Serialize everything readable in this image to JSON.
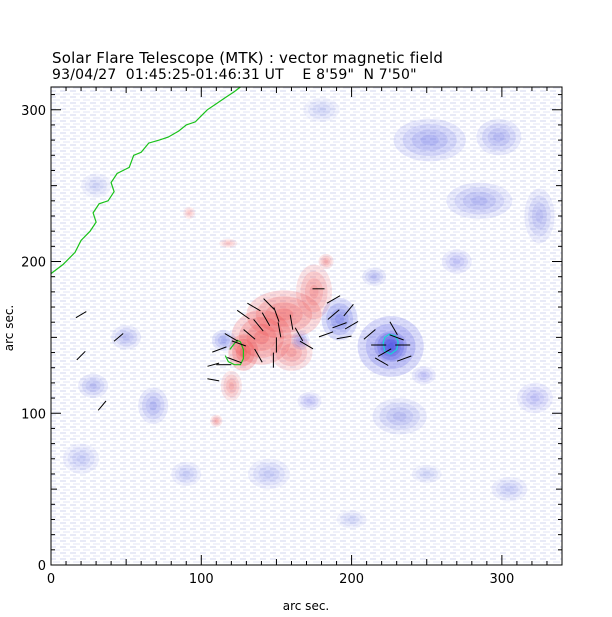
{
  "title": "Solar Flare Telescope (MTK) : vector magnetic field",
  "subtitle": "93/04/27  01:45:25-01:46:31 UT    E 8'59\"  N 7'50\"",
  "colors": {
    "background": "#ffffff",
    "noise": "#b8bde6",
    "positive_polarity": "#ee3b3b",
    "negative_polarity": "#3c46e0",
    "contour_green": "#19c219",
    "contour_cyan": "#19d6d6",
    "vectors": "#000000"
  },
  "chart_data": {
    "type": "magnetogram",
    "x_range": [
      0,
      340
    ],
    "y_range": [
      0,
      315
    ],
    "x_ticks": [
      0,
      100,
      200,
      300
    ],
    "y_ticks": [
      0,
      100,
      200,
      300
    ],
    "x_label": "arc sec.",
    "y_label": "arc sec.",
    "positive_blobs": [
      {
        "x": 155,
        "y": 165,
        "rx": 25,
        "ry": 16,
        "strength": 0.8
      },
      {
        "x": 140,
        "y": 150,
        "rx": 20,
        "ry": 18,
        "strength": 0.85
      },
      {
        "x": 128,
        "y": 140,
        "rx": 10,
        "ry": 12,
        "strength": 1.0
      },
      {
        "x": 175,
        "y": 180,
        "rx": 12,
        "ry": 18,
        "strength": 0.6
      },
      {
        "x": 160,
        "y": 140,
        "rx": 14,
        "ry": 12,
        "strength": 0.6
      },
      {
        "x": 183,
        "y": 200,
        "rx": 5,
        "ry": 5,
        "strength": 0.5
      },
      {
        "x": 120,
        "y": 118,
        "rx": 7,
        "ry": 10,
        "strength": 0.5
      },
      {
        "x": 110,
        "y": 95,
        "rx": 4,
        "ry": 4,
        "strength": 0.5
      },
      {
        "x": 118,
        "y": 212,
        "rx": 6,
        "ry": 3,
        "strength": 0.35
      },
      {
        "x": 92,
        "y": 232,
        "rx": 4,
        "ry": 4,
        "strength": 0.35
      }
    ],
    "negative_blobs": [
      {
        "x": 226,
        "y": 144,
        "rx": 9,
        "ry": 9,
        "strength": 1.0
      },
      {
        "x": 226,
        "y": 144,
        "rx": 22,
        "ry": 20,
        "strength": 0.8
      },
      {
        "x": 192,
        "y": 162,
        "rx": 12,
        "ry": 14,
        "strength": 0.75
      },
      {
        "x": 166,
        "y": 148,
        "rx": 6,
        "ry": 6,
        "strength": 0.5
      },
      {
        "x": 115,
        "y": 148,
        "rx": 8,
        "ry": 7,
        "strength": 0.55
      },
      {
        "x": 252,
        "y": 280,
        "rx": 24,
        "ry": 14,
        "strength": 0.5
      },
      {
        "x": 298,
        "y": 282,
        "rx": 15,
        "ry": 12,
        "strength": 0.45
      },
      {
        "x": 285,
        "y": 240,
        "rx": 22,
        "ry": 12,
        "strength": 0.45
      },
      {
        "x": 50,
        "y": 150,
        "rx": 10,
        "ry": 8,
        "strength": 0.4
      },
      {
        "x": 68,
        "y": 105,
        "rx": 10,
        "ry": 12,
        "strength": 0.45
      },
      {
        "x": 28,
        "y": 118,
        "rx": 10,
        "ry": 8,
        "strength": 0.4
      },
      {
        "x": 232,
        "y": 98,
        "rx": 18,
        "ry": 12,
        "strength": 0.4
      },
      {
        "x": 325,
        "y": 230,
        "rx": 10,
        "ry": 18,
        "strength": 0.4
      },
      {
        "x": 322,
        "y": 110,
        "rx": 12,
        "ry": 10,
        "strength": 0.35
      },
      {
        "x": 215,
        "y": 190,
        "rx": 8,
        "ry": 6,
        "strength": 0.4
      },
      {
        "x": 172,
        "y": 108,
        "rx": 8,
        "ry": 6,
        "strength": 0.35
      },
      {
        "x": 270,
        "y": 200,
        "rx": 10,
        "ry": 8,
        "strength": 0.35
      },
      {
        "x": 248,
        "y": 125,
        "rx": 8,
        "ry": 6,
        "strength": 0.35
      },
      {
        "x": 20,
        "y": 70,
        "rx": 12,
        "ry": 10,
        "strength": 0.3
      },
      {
        "x": 145,
        "y": 60,
        "rx": 14,
        "ry": 10,
        "strength": 0.3
      },
      {
        "x": 305,
        "y": 50,
        "rx": 12,
        "ry": 8,
        "strength": 0.3
      },
      {
        "x": 90,
        "y": 60,
        "rx": 10,
        "ry": 8,
        "strength": 0.3
      },
      {
        "x": 250,
        "y": 60,
        "rx": 10,
        "ry": 6,
        "strength": 0.25
      },
      {
        "x": 200,
        "y": 30,
        "rx": 10,
        "ry": 6,
        "strength": 0.25
      },
      {
        "x": 30,
        "y": 250,
        "rx": 10,
        "ry": 8,
        "strength": 0.25
      },
      {
        "x": 180,
        "y": 300,
        "rx": 12,
        "ry": 8,
        "strength": 0.25
      }
    ],
    "vectors": [
      {
        "x": 120,
        "y": 150,
        "angle": -30,
        "len": 5
      },
      {
        "x": 125,
        "y": 146,
        "angle": -20,
        "len": 5
      },
      {
        "x": 132,
        "y": 152,
        "angle": -40,
        "len": 5
      },
      {
        "x": 138,
        "y": 158,
        "angle": -50,
        "len": 5
      },
      {
        "x": 143,
        "y": 162,
        "angle": -60,
        "len": 5
      },
      {
        "x": 128,
        "y": 165,
        "angle": -35,
        "len": 5
      },
      {
        "x": 135,
        "y": 170,
        "angle": -30,
        "len": 5
      },
      {
        "x": 145,
        "y": 172,
        "angle": -45,
        "len": 5
      },
      {
        "x": 150,
        "y": 165,
        "angle": -70,
        "len": 5
      },
      {
        "x": 152,
        "y": 155,
        "angle": -80,
        "len": 5
      },
      {
        "x": 150,
        "y": 145,
        "angle": -90,
        "len": 5
      },
      {
        "x": 160,
        "y": 160,
        "angle": -80,
        "len": 5
      },
      {
        "x": 165,
        "y": 152,
        "angle": -60,
        "len": 5
      },
      {
        "x": 170,
        "y": 145,
        "angle": -30,
        "len": 5
      },
      {
        "x": 148,
        "y": 135,
        "angle": -90,
        "len": 5
      },
      {
        "x": 138,
        "y": 138,
        "angle": -60,
        "len": 5
      },
      {
        "x": 112,
        "y": 142,
        "angle": 20,
        "len": 5
      },
      {
        "x": 115,
        "y": 132,
        "angle": 0,
        "len": 5
      },
      {
        "x": 122,
        "y": 135,
        "angle": -20,
        "len": 5
      },
      {
        "x": 188,
        "y": 175,
        "angle": 30,
        "len": 5
      },
      {
        "x": 188,
        "y": 165,
        "angle": 40,
        "len": 5
      },
      {
        "x": 192,
        "y": 158,
        "angle": 20,
        "len": 5
      },
      {
        "x": 198,
        "y": 168,
        "angle": 50,
        "len": 5
      },
      {
        "x": 200,
        "y": 158,
        "angle": 30,
        "len": 5
      },
      {
        "x": 195,
        "y": 150,
        "angle": 10,
        "len": 5
      },
      {
        "x": 183,
        "y": 152,
        "angle": 20,
        "len": 5
      },
      {
        "x": 178,
        "y": 182,
        "angle": 0,
        "len": 4
      },
      {
        "x": 212,
        "y": 152,
        "angle": 40,
        "len": 5
      },
      {
        "x": 218,
        "y": 145,
        "angle": 0,
        "len": 5
      },
      {
        "x": 222,
        "y": 140,
        "angle": 30,
        "len": 5
      },
      {
        "x": 230,
        "y": 150,
        "angle": -20,
        "len": 5
      },
      {
        "x": 234,
        "y": 145,
        "angle": 0,
        "len": 5
      },
      {
        "x": 228,
        "y": 156,
        "angle": -60,
        "len": 5
      },
      {
        "x": 235,
        "y": 136,
        "angle": 20,
        "len": 5
      },
      {
        "x": 220,
        "y": 134,
        "angle": -30,
        "len": 5
      },
      {
        "x": 20,
        "y": 165,
        "angle": 30,
        "len": 4
      },
      {
        "x": 45,
        "y": 150,
        "angle": 40,
        "len": 4
      },
      {
        "x": 20,
        "y": 138,
        "angle": 45,
        "len": 4
      },
      {
        "x": 34,
        "y": 105,
        "angle": 50,
        "len": 4
      },
      {
        "x": 108,
        "y": 132,
        "angle": 15,
        "len": 4
      },
      {
        "x": 108,
        "y": 122,
        "angle": -10,
        "len": 4
      }
    ],
    "green_contours": [
      [
        [
          0,
          192
        ],
        [
          8,
          198
        ],
        [
          16,
          206
        ],
        [
          20,
          214
        ],
        [
          26,
          220
        ],
        [
          30,
          226
        ],
        [
          28,
          232
        ],
        [
          32,
          238
        ],
        [
          38,
          240
        ],
        [
          42,
          246
        ],
        [
          40,
          252
        ],
        [
          44,
          258
        ],
        [
          52,
          262
        ],
        [
          55,
          270
        ],
        [
          60,
          272
        ],
        [
          65,
          278
        ],
        [
          72,
          280
        ],
        [
          78,
          282
        ],
        [
          85,
          286
        ],
        [
          90,
          290
        ],
        [
          96,
          292
        ],
        [
          100,
          296
        ],
        [
          104,
          300
        ],
        [
          110,
          304
        ],
        [
          116,
          308
        ],
        [
          122,
          312
        ],
        [
          126,
          315
        ]
      ],
      [
        [
          116,
          138
        ],
        [
          118,
          134
        ],
        [
          122,
          132
        ],
        [
          126,
          132
        ],
        [
          128,
          136
        ],
        [
          128,
          142
        ],
        [
          126,
          147
        ],
        [
          124,
          148
        ],
        [
          122,
          146
        ],
        [
          119,
          142
        ]
      ]
    ],
    "cyan_contours": [
      [
        [
          221,
          146
        ],
        [
          222,
          150
        ],
        [
          225,
          152
        ],
        [
          229,
          151
        ],
        [
          231,
          147
        ],
        [
          230,
          142
        ],
        [
          226,
          139
        ],
        [
          222,
          141
        ]
      ]
    ]
  }
}
